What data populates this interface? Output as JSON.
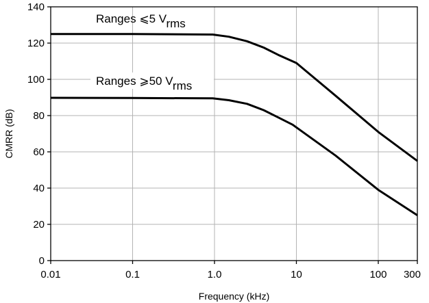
{
  "chart_data": {
    "type": "line",
    "xlabel": "Frequency (kHz)",
    "ylabel": "CMRR (dB)",
    "x_scale": "log",
    "xlim": [
      0.01,
      300
    ],
    "ylim": [
      0,
      140
    ],
    "grid": true,
    "x_ticks": [
      {
        "value": 0.01,
        "label": "0.01"
      },
      {
        "value": 0.1,
        "label": "0.1"
      },
      {
        "value": 1,
        "label": "1.0"
      },
      {
        "value": 10,
        "label": "10"
      },
      {
        "value": 100,
        "label": "100"
      },
      {
        "value": 300,
        "label": "300"
      }
    ],
    "y_ticks": [
      {
        "value": 0,
        "label": "0"
      },
      {
        "value": 20,
        "label": "20"
      },
      {
        "value": 40,
        "label": "40"
      },
      {
        "value": 60,
        "label": "60"
      },
      {
        "value": 80,
        "label": "80"
      },
      {
        "value": 100,
        "label": "100"
      },
      {
        "value": 120,
        "label": "120"
      },
      {
        "value": 140,
        "label": "140"
      }
    ],
    "series": [
      {
        "annotation": {
          "main": "Ranges ⩽5 V",
          "sub": "rms"
        },
        "x": [
          0.01,
          0.1,
          0.95,
          1.5,
          2.5,
          4,
          6,
          10,
          30,
          100,
          300
        ],
        "y": [
          125,
          125,
          124.7,
          123.5,
          121,
          117.5,
          113.5,
          109,
          91,
          71,
          55
        ]
      },
      {
        "annotation": {
          "main": "Ranges ⩾50 V",
          "sub": "rms"
        },
        "x": [
          0.01,
          0.1,
          0.95,
          1.5,
          2.5,
          4,
          6,
          9,
          30,
          100,
          300
        ],
        "y": [
          89.8,
          89.7,
          89.5,
          88.5,
          86.5,
          83,
          79,
          75,
          58,
          39,
          25
        ]
      }
    ]
  }
}
